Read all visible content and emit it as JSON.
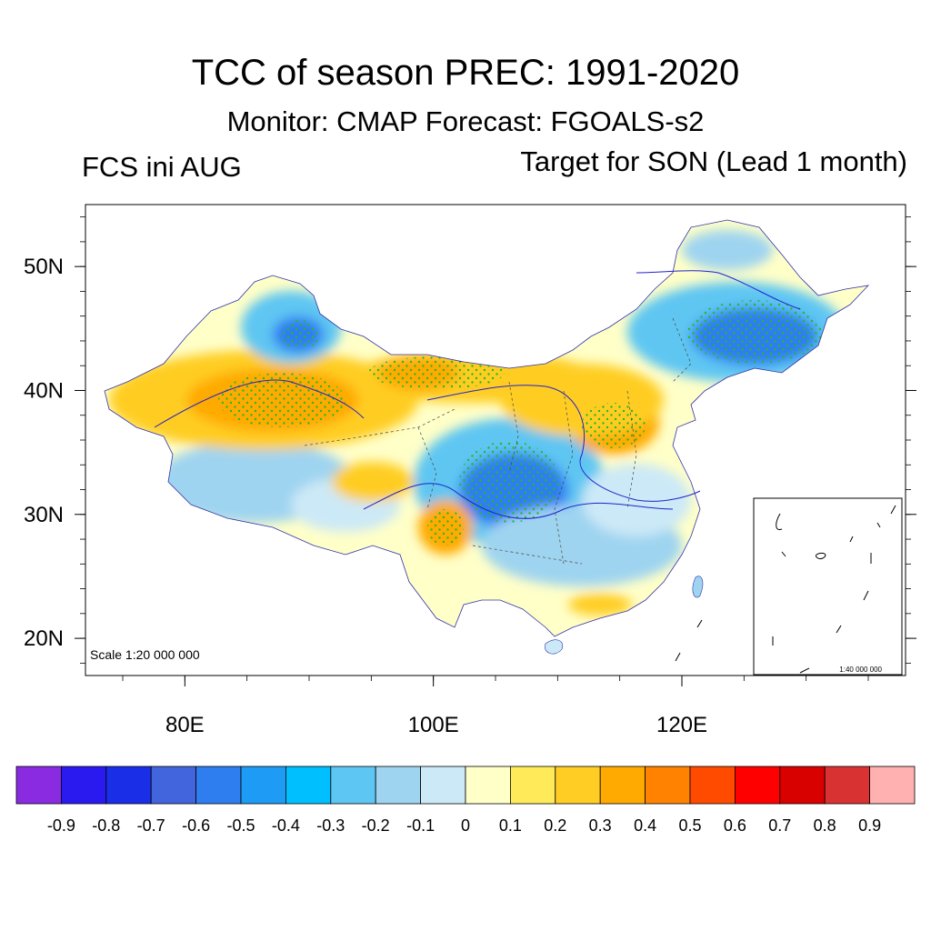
{
  "header": {
    "title": "TCC of season PREC: 1991-2020",
    "subtitle": "Monitor: CMAP   Forecast: FGOALS-s2",
    "left_label": "FCS ini AUG",
    "right_label": "Target for SON (Lead 1 month)"
  },
  "map": {
    "scale_main": "Scale 1:20 000 000",
    "scale_inset": "1:40 000 000"
  },
  "chart_data": {
    "type": "heatmap",
    "title": "TCC of season PREC: 1991-2020",
    "xlabel": "",
    "ylabel": "",
    "x_ticks": [
      "80E",
      "100E",
      "120E"
    ],
    "x_tick_values": [
      80,
      100,
      120
    ],
    "y_ticks": [
      "50N",
      "40N",
      "30N",
      "20N"
    ],
    "y_tick_values": [
      50,
      40,
      30,
      20
    ],
    "xlim": [
      72,
      138
    ],
    "ylim": [
      17,
      55
    ],
    "colorbar": {
      "labels": [
        "-0.9",
        "-0.8",
        "-0.7",
        "-0.6",
        "-0.5",
        "-0.4",
        "-0.3",
        "-0.2",
        "-0.1",
        "0",
        "0.1",
        "0.2",
        "0.3",
        "0.4",
        "0.5",
        "0.6",
        "0.7",
        "0.8",
        "0.9"
      ],
      "colors": [
        "#8a2be2",
        "#2a1aef",
        "#1a2ee8",
        "#4265de",
        "#2f7ef0",
        "#1e9bf5",
        "#00bfff",
        "#5ec6f2",
        "#9fd4f0",
        "#cce9f7",
        "#ffffc8",
        "#ffeb5a",
        "#ffcd24",
        "#ffaa00",
        "#ff8200",
        "#ff4b00",
        "#ff0000",
        "#d90000",
        "#d93232",
        "#ffb0b0"
      ]
    },
    "regions": [
      {
        "lon": 89,
        "lat": 44.5,
        "value": -0.4
      },
      {
        "lon": 86,
        "lat": 39,
        "value": 0.5
      },
      {
        "lon": 98.5,
        "lat": 41.8,
        "value": 0.5
      },
      {
        "lon": 114.5,
        "lat": 37.5,
        "value": 0.4
      },
      {
        "lon": 106,
        "lat": 32,
        "value": -0.5
      },
      {
        "lon": 101,
        "lat": 28.8,
        "value": 0.4
      },
      {
        "lon": 128,
        "lat": 44,
        "value": -0.6
      },
      {
        "lon": 114,
        "lat": 23,
        "value": 0.3
      }
    ]
  }
}
